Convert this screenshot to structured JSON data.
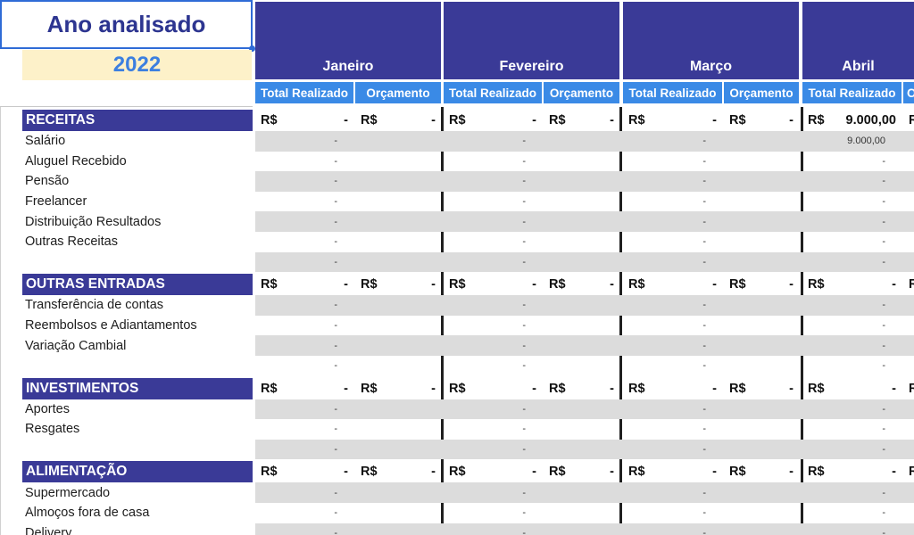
{
  "header": {
    "label": "Ano analisado",
    "year": "2022"
  },
  "months": [
    {
      "name": "Janeiro"
    },
    {
      "name": "Fevereiro"
    },
    {
      "name": "Março"
    },
    {
      "name": "Abril"
    }
  ],
  "columns": {
    "realizado": "Total Realizado",
    "orcamento": "Orçamento"
  },
  "currency_symbol": "R$",
  "empty_value": "-",
  "rows": [
    {
      "type": "cat",
      "label": "RECEITAS",
      "values": [
        "-",
        "-",
        "-",
        "-",
        "-",
        "-",
        "9.000,00",
        ""
      ]
    },
    {
      "type": "item",
      "label": "Salário",
      "values": [
        "-",
        "",
        "-",
        "",
        "-",
        "",
        "9.000,00",
        ""
      ]
    },
    {
      "type": "item",
      "label": "Aluguel Recebido",
      "values": [
        "-",
        "",
        "-",
        "",
        "-",
        "",
        "-",
        ""
      ]
    },
    {
      "type": "item",
      "label": "Pensão",
      "values": [
        "-",
        "",
        "-",
        "",
        "-",
        "",
        "-",
        ""
      ]
    },
    {
      "type": "item",
      "label": "Freelancer",
      "values": [
        "-",
        "",
        "-",
        "",
        "-",
        "",
        "-",
        ""
      ]
    },
    {
      "type": "item",
      "label": "Distribuição Resultados",
      "values": [
        "-",
        "",
        "-",
        "",
        "-",
        "",
        "-",
        ""
      ]
    },
    {
      "type": "item",
      "label": "Outras Receitas",
      "values": [
        "-",
        "",
        "-",
        "",
        "-",
        "",
        "-",
        ""
      ]
    },
    {
      "type": "item",
      "label": "",
      "values": [
        "-",
        "",
        "-",
        "",
        "-",
        "",
        "-",
        ""
      ]
    },
    {
      "type": "cat",
      "label": "OUTRAS ENTRADAS",
      "values": [
        "-",
        "-",
        "-",
        "-",
        "-",
        "-",
        "-",
        ""
      ]
    },
    {
      "type": "item",
      "label": "Transferência de contas",
      "values": [
        "-",
        "",
        "-",
        "",
        "-",
        "",
        "-",
        ""
      ]
    },
    {
      "type": "item",
      "label": "Reembolsos e Adiantamentos",
      "values": [
        "-",
        "",
        "-",
        "",
        "-",
        "",
        "-",
        ""
      ]
    },
    {
      "type": "item",
      "label": "Variação Cambial",
      "values": [
        "-",
        "",
        "-",
        "",
        "-",
        "",
        "-",
        ""
      ]
    },
    {
      "type": "item",
      "label": "",
      "values": [
        "-",
        "",
        "-",
        "",
        "-",
        "",
        "-",
        ""
      ]
    },
    {
      "type": "cat",
      "label": "INVESTIMENTOS",
      "values": [
        "-",
        "-",
        "-",
        "-",
        "-",
        "-",
        "-",
        ""
      ]
    },
    {
      "type": "item",
      "label": "Aportes",
      "values": [
        "-",
        "",
        "-",
        "",
        "-",
        "",
        "-",
        ""
      ]
    },
    {
      "type": "item",
      "label": "Resgates",
      "values": [
        "-",
        "",
        "-",
        "",
        "-",
        "",
        "-",
        ""
      ]
    },
    {
      "type": "item",
      "label": "",
      "values": [
        "-",
        "",
        "-",
        "",
        "-",
        "",
        "-",
        ""
      ]
    },
    {
      "type": "cat",
      "label": "ALIMENTAÇÃO",
      "values": [
        "-",
        "-",
        "-",
        "-",
        "-",
        "-",
        "-",
        ""
      ]
    },
    {
      "type": "item",
      "label": "Supermercado",
      "values": [
        "-",
        "",
        "-",
        "",
        "-",
        "",
        "-",
        ""
      ]
    },
    {
      "type": "item",
      "label": "Almoços fora de casa",
      "values": [
        "-",
        "",
        "-",
        "",
        "-",
        "",
        "-",
        ""
      ]
    },
    {
      "type": "item",
      "label": "Delivery",
      "values": [
        "-",
        "",
        "-",
        "",
        "-",
        "",
        "-",
        ""
      ]
    }
  ]
}
